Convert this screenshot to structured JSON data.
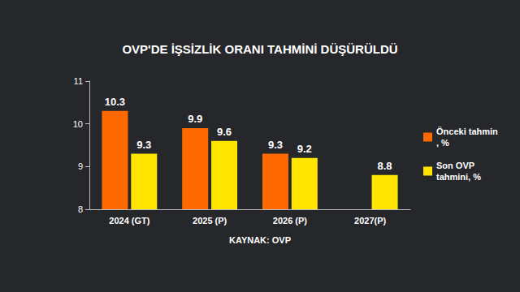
{
  "chart_data": {
    "type": "bar",
    "title": "OVP'DE İŞSİZLİK ORANI TAHMİNİ DÜŞÜRÜLDÜ",
    "source": "KAYNAK: OVP",
    "categories": [
      "2024 (GT)",
      "2025 (P)",
      "2026 (P)",
      "2027(P)"
    ],
    "series": [
      {
        "name": "Önceki tahmin, %",
        "color": "#ff6a00",
        "values": [
          10.3,
          9.9,
          9.3,
          null
        ]
      },
      {
        "name": "Son OVP tahmini, %",
        "color": "#ffe500",
        "values": [
          9.3,
          9.6,
          9.2,
          8.8
        ]
      }
    ],
    "ylim": [
      8,
      11
    ],
    "yticks": [
      8,
      9,
      10,
      11
    ],
    "grid": false,
    "legend": "right",
    "data_labels": true
  }
}
